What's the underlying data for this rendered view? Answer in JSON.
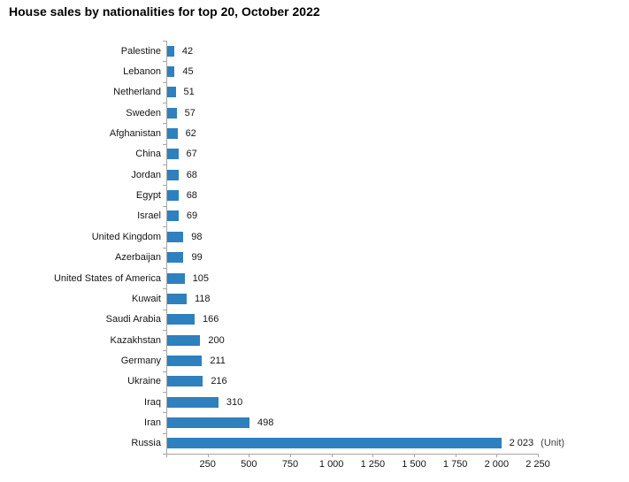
{
  "chart_data": {
    "type": "bar",
    "orientation": "horizontal",
    "title": "House sales by nationalities for top 20, October 2022",
    "unit_label": "(Unit)",
    "categories": [
      "Palestine",
      "Lebanon",
      "Netherland",
      "Sweden",
      "Afghanistan",
      "China",
      "Jordan",
      "Egypt",
      "Israel",
      "United Kingdom",
      "Azerbaijan",
      "United States of America",
      "Kuwait",
      "Saudi Arabia",
      "Kazakhstan",
      "Germany",
      "Ukraine",
      "Iraq",
      "Iran",
      "Russia"
    ],
    "values": [
      42,
      45,
      51,
      57,
      62,
      67,
      68,
      68,
      69,
      98,
      99,
      105,
      118,
      166,
      200,
      211,
      216,
      310,
      498,
      2023
    ],
    "value_labels": [
      "42",
      "45",
      "51",
      "57",
      "62",
      "67",
      "68",
      "68",
      "69",
      "98",
      "99",
      "105",
      "118",
      "166",
      "200",
      "211",
      "216",
      "310",
      "498",
      "2 023"
    ],
    "xlabel": "",
    "ylabel": "",
    "xlim": [
      0,
      2250
    ],
    "x_ticks": [
      0,
      250,
      500,
      750,
      1000,
      1250,
      1500,
      1750,
      2000,
      2250
    ],
    "x_tick_labels": [
      "",
      "250",
      "500",
      "750",
      "1 000",
      "1 250",
      "1 500",
      "1 750",
      "2 000",
      "2 250"
    ],
    "grid": false,
    "legend": "none",
    "bar_color": "#2E80BE",
    "axis_color": "#A6A6A6",
    "text_color": "#151515"
  }
}
